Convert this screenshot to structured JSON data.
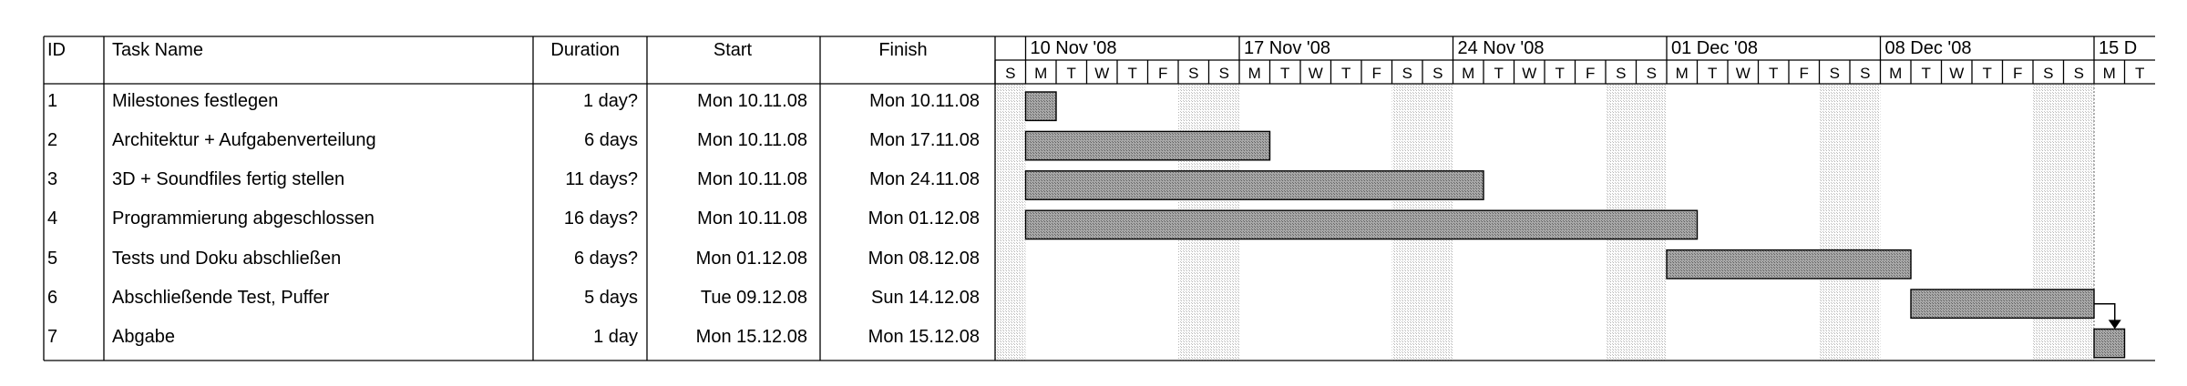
{
  "table": {
    "columns": {
      "id": "ID",
      "name": "Task Name",
      "duration": "Duration",
      "start": "Start",
      "finish": "Finish"
    },
    "rows": [
      {
        "id": "1",
        "name": "Milestones festlegen",
        "duration": "1 day?",
        "start": "Mon 10.11.08",
        "finish": "Mon 10.11.08"
      },
      {
        "id": "2",
        "name": "Architektur + Aufgabenverteilung",
        "duration": "6 days",
        "start": "Mon 10.11.08",
        "finish": "Mon 17.11.08"
      },
      {
        "id": "3",
        "name": "3D + Soundfiles fertig stellen",
        "duration": "11 days?",
        "start": "Mon 10.11.08",
        "finish": "Mon 24.11.08"
      },
      {
        "id": "4",
        "name": "Programmierung abgeschlossen",
        "duration": "16 days?",
        "start": "Mon 10.11.08",
        "finish": "Mon 01.12.08"
      },
      {
        "id": "5",
        "name": "Tests und Doku abschließen",
        "duration": "6 days?",
        "start": "Mon 01.12.08",
        "finish": "Mon 08.12.08"
      },
      {
        "id": "6",
        "name": "Abschließende Test, Puffer",
        "duration": "5 days",
        "start": "Tue 09.12.08",
        "finish": "Sun 14.12.08"
      },
      {
        "id": "7",
        "name": "Abgabe",
        "duration": "1 day",
        "start": "Mon 15.12.08",
        "finish": "Mon 15.12.08"
      }
    ]
  },
  "chart_data": {
    "type": "gantt",
    "timeline_start": "2008-11-09",
    "timeline_end": "2008-12-16",
    "week_labels": [
      "10 Nov '08",
      "17 Nov '08",
      "24 Nov '08",
      "01 Dec '08",
      "08 Dec '08",
      "15 D"
    ],
    "day_letters": [
      "S",
      "M",
      "T",
      "W",
      "T",
      "F",
      "S"
    ],
    "bars": [
      {
        "start": "2008-11-10",
        "end": "2008-11-10"
      },
      {
        "start": "2008-11-10",
        "end": "2008-11-17"
      },
      {
        "start": "2008-11-10",
        "end": "2008-11-24"
      },
      {
        "start": "2008-11-10",
        "end": "2008-12-01"
      },
      {
        "start": "2008-12-01",
        "end": "2008-12-08"
      },
      {
        "start": "2008-12-09",
        "end": "2008-12-14"
      },
      {
        "start": "2008-12-15",
        "end": "2008-12-15"
      }
    ],
    "links": [
      {
        "from": 6,
        "to": 7
      }
    ],
    "colors": {
      "bar_fill": "#9a9a9a",
      "bar_stroke": "#000000",
      "weekend_shade": "#e6e6e6",
      "grid": "#000000"
    }
  }
}
